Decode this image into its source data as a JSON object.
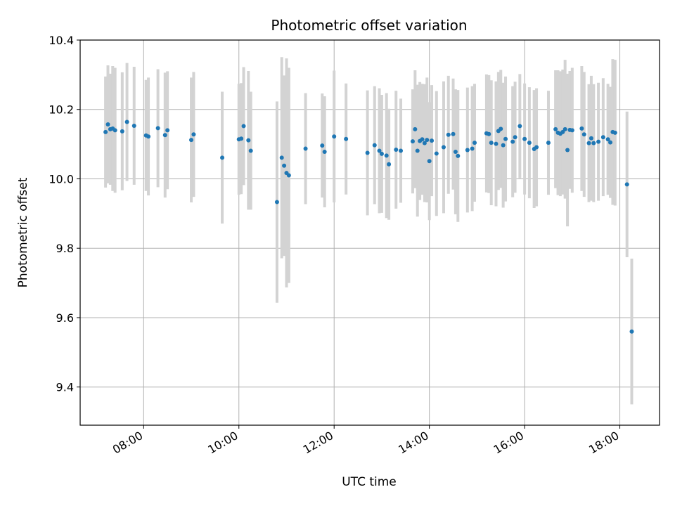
{
  "chart_data": {
    "type": "scatter",
    "title": "Photometric offset variation",
    "xlabel": "UTC time",
    "ylabel": "Photometric offset",
    "x_ticks": [
      "08:00",
      "10:00",
      "12:00",
      "14:00",
      "16:00",
      "18:00"
    ],
    "y_ticks": [
      "9.4",
      "9.6",
      "9.8",
      "10.0",
      "10.2",
      "10.4"
    ],
    "xlim": [
      "06:40",
      "18:50"
    ],
    "ylim": [
      9.29,
      10.4
    ],
    "grid": true,
    "colors": {
      "point": "#1f77b4",
      "errorbar": "#d3d3d3",
      "grid": "#b0b0b0"
    },
    "series": [
      {
        "x": [
          "07:12",
          "07:15",
          "07:18",
          "07:21",
          "07:24",
          "07:33",
          "07:39",
          "07:48",
          "08:03",
          "08:06",
          "08:18",
          "08:27",
          "08:30",
          "09:00",
          "09:03",
          "09:39",
          "10:00",
          "10:03",
          "10:06",
          "10:12",
          "10:15",
          "10:48",
          "10:54",
          "10:57",
          "11:00",
          "11:03",
          "11:24",
          "11:45",
          "11:48",
          "12:00",
          "12:15",
          "12:42",
          "12:51",
          "12:57",
          "13:00",
          "13:06",
          "13:09",
          "13:18",
          "13:24",
          "13:39",
          "13:42",
          "13:45",
          "13:48",
          "13:51",
          "13:54",
          "13:57",
          "14:00",
          "14:03",
          "14:09",
          "14:18",
          "14:24",
          "14:30",
          "14:33",
          "14:36",
          "14:48",
          "14:54",
          "14:57",
          "15:12",
          "15:15",
          "15:18",
          "15:24",
          "15:27",
          "15:30",
          "15:33",
          "15:36",
          "15:45",
          "15:48",
          "15:54",
          "16:00",
          "16:06",
          "16:12",
          "16:15",
          "16:30",
          "16:39",
          "16:42",
          "16:45",
          "16:48",
          "16:51",
          "16:54",
          "16:57",
          "17:00",
          "17:12",
          "17:15",
          "17:21",
          "17:24",
          "17:27",
          "17:33",
          "17:39",
          "17:45",
          "17:48",
          "17:51",
          "17:54",
          "18:09",
          "18:15"
        ],
        "y": [
          10.135,
          10.157,
          10.143,
          10.145,
          10.14,
          10.137,
          10.164,
          10.153,
          10.125,
          10.122,
          10.146,
          10.126,
          10.14,
          10.112,
          10.128,
          10.061,
          10.114,
          10.116,
          10.152,
          10.111,
          10.081,
          9.933,
          10.061,
          10.038,
          10.017,
          10.01,
          10.087,
          10.096,
          10.078,
          10.122,
          10.115,
          10.075,
          10.097,
          10.081,
          10.072,
          10.067,
          10.042,
          10.084,
          10.081,
          10.108,
          10.143,
          10.081,
          10.109,
          10.114,
          10.103,
          10.112,
          10.051,
          10.11,
          10.073,
          10.091,
          10.127,
          10.129,
          10.078,
          10.066,
          10.083,
          10.087,
          10.104,
          10.131,
          10.129,
          10.104,
          10.101,
          10.138,
          10.144,
          10.097,
          10.115,
          10.107,
          10.12,
          10.152,
          10.115,
          10.104,
          10.086,
          10.091,
          10.104,
          10.143,
          10.133,
          10.13,
          10.135,
          10.143,
          10.083,
          10.141,
          10.14,
          10.145,
          10.128,
          10.103,
          10.117,
          10.103,
          10.107,
          10.12,
          10.114,
          10.105,
          10.135,
          10.133,
          9.984,
          9.56
        ],
        "err": [
          0.16,
          0.17,
          0.16,
          0.18,
          0.18,
          0.17,
          0.17,
          0.17,
          0.16,
          0.17,
          0.17,
          0.18,
          0.17,
          0.18,
          0.18,
          0.19,
          0.16,
          0.16,
          0.17,
          0.2,
          0.17,
          0.29,
          0.29,
          0.26,
          0.33,
          0.31,
          0.16,
          0.15,
          0.16,
          0.19,
          0.16,
          0.18,
          0.17,
          0.18,
          0.17,
          0.18,
          0.16,
          0.17,
          0.15,
          0.15,
          0.17,
          0.19,
          0.17,
          0.16,
          0.17,
          0.18,
          0.17,
          0.16,
          0.18,
          0.19,
          0.17,
          0.16,
          0.18,
          0.19,
          0.18,
          0.18,
          0.17,
          0.17,
          0.17,
          0.18,
          0.18,
          0.17,
          0.17,
          0.18,
          0.18,
          0.16,
          0.16,
          0.15,
          0.16,
          0.16,
          0.17,
          0.17,
          0.15,
          0.17,
          0.18,
          0.18,
          0.18,
          0.2,
          0.22,
          0.17,
          0.18,
          0.18,
          0.18,
          0.17,
          0.18,
          0.17,
          0.17,
          0.17,
          0.16,
          0.16,
          0.21,
          0.21,
          0.21,
          0.21
        ]
      }
    ]
  }
}
